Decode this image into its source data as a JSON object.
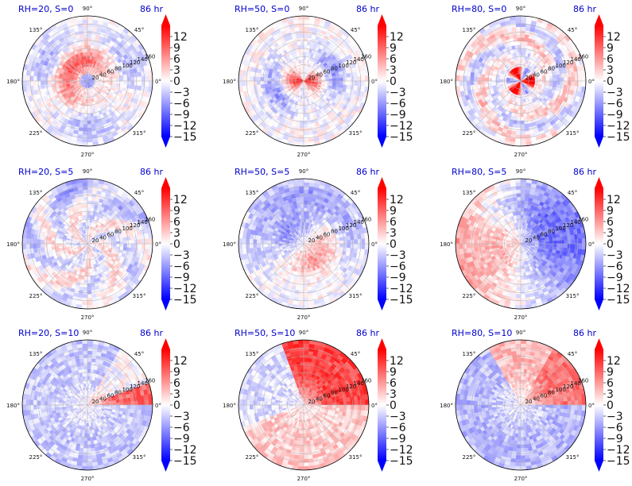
{
  "figure": {
    "colors": {
      "positive": "#ff0000",
      "negative": "#0000ff",
      "neutral": "#ffffff",
      "title": "#0000cc"
    }
  },
  "chart_data": [
    {
      "type": "heatmap",
      "projection": "polar",
      "title": "RH=20, S=0",
      "time_label": "86 hr",
      "pattern": "ring",
      "angle_tick_labels": [
        "90°",
        "45°",
        "0°",
        "315°",
        "270°",
        "225°",
        "180°",
        "135°"
      ],
      "radial_tick_labels": [
        "20",
        "40",
        "60",
        "80",
        "100",
        "120",
        "140",
        "160"
      ],
      "colorbar": {
        "ticks": [
          "12",
          "9",
          "6",
          "3",
          "0",
          "−3",
          "−6",
          "−9",
          "−12",
          "−15"
        ],
        "vmin": -15,
        "vmax": 15,
        "extend": "both",
        "colormap": "bwr"
      }
    },
    {
      "type": "heatmap",
      "projection": "polar",
      "title": "RH=50, S=0",
      "time_label": "86 hr",
      "pattern": "core",
      "angle_tick_labels": [
        "90°",
        "45°",
        "0°",
        "315°",
        "270°",
        "225°",
        "180°",
        "135°"
      ],
      "radial_tick_labels": [
        "20",
        "40",
        "60",
        "80",
        "100",
        "120",
        "140",
        "160"
      ],
      "colorbar": {
        "ticks": [
          "12",
          "9",
          "6",
          "3",
          "0",
          "−3",
          "−6",
          "−9",
          "−12",
          "−15"
        ],
        "vmin": -15,
        "vmax": 15,
        "extend": "both",
        "colormap": "bwr"
      }
    },
    {
      "type": "heatmap",
      "projection": "polar",
      "title": "RH=80, S=0",
      "time_label": "86 hr",
      "pattern": "spiral",
      "angle_tick_labels": [
        "90°",
        "45°",
        "0°",
        "315°",
        "270°",
        "225°",
        "180°",
        "135°"
      ],
      "radial_tick_labels": [
        "20",
        "40",
        "60",
        "80",
        "100",
        "120",
        "140",
        "160"
      ],
      "colorbar": {
        "ticks": [
          "12",
          "9",
          "6",
          "3",
          "0",
          "−3",
          "−6",
          "−9",
          "−12",
          "−15"
        ],
        "vmin": -15,
        "vmax": 15,
        "extend": "both",
        "colormap": "bwr"
      }
    },
    {
      "type": "heatmap",
      "projection": "polar",
      "title": "RH=20, S=5",
      "time_label": "86 hr",
      "pattern": "patchy",
      "angle_tick_labels": [
        "90°",
        "45°",
        "0°",
        "315°",
        "270°",
        "225°",
        "180°",
        "135°"
      ],
      "radial_tick_labels": [
        "20",
        "40",
        "60",
        "80",
        "100",
        "120",
        "140",
        "160"
      ],
      "colorbar": {
        "ticks": [
          "12",
          "9",
          "6",
          "3",
          "0",
          "−3",
          "−6",
          "−9",
          "−12",
          "−15"
        ],
        "vmin": -15,
        "vmax": 15,
        "extend": "both",
        "colormap": "bwr"
      }
    },
    {
      "type": "heatmap",
      "projection": "polar",
      "title": "RH=50, S=5",
      "time_label": "86 hr",
      "pattern": "mixed",
      "angle_tick_labels": [
        "90°",
        "45°",
        "0°",
        "315°",
        "270°",
        "225°",
        "180°",
        "135°"
      ],
      "radial_tick_labels": [
        "20",
        "40",
        "60",
        "80",
        "100",
        "120",
        "140",
        "160"
      ],
      "colorbar": {
        "ticks": [
          "12",
          "9",
          "6",
          "3",
          "0",
          "−3",
          "−6",
          "−9",
          "−12",
          "−15"
        ],
        "vmin": -15,
        "vmax": 15,
        "extend": "both",
        "colormap": "bwr"
      }
    },
    {
      "type": "heatmap",
      "projection": "polar",
      "title": "RH=80, S=5",
      "time_label": "86 hr",
      "pattern": "dipole",
      "angle_tick_labels": [
        "90°",
        "45°",
        "0°",
        "315°",
        "270°",
        "225°",
        "180°",
        "135°"
      ],
      "radial_tick_labels": [
        "20",
        "40",
        "60",
        "80",
        "100",
        "120",
        "140",
        "160"
      ],
      "colorbar": {
        "ticks": [
          "12",
          "9",
          "6",
          "3",
          "0",
          "−3",
          "−6",
          "−9",
          "−12",
          "−15"
        ],
        "vmin": -15,
        "vmax": 15,
        "extend": "both",
        "colormap": "bwr"
      }
    },
    {
      "type": "heatmap",
      "projection": "polar",
      "title": "RH=20, S=10",
      "time_label": "86 hr",
      "pattern": "sector",
      "angle_tick_labels": [
        "90°",
        "45°",
        "0°",
        "315°",
        "270°",
        "225°",
        "180°",
        "135°"
      ],
      "radial_tick_labels": [
        "20",
        "40",
        "60",
        "80",
        "100",
        "120",
        "140",
        "160"
      ],
      "colorbar": {
        "ticks": [
          "12",
          "9",
          "6",
          "3",
          "0",
          "−3",
          "−6",
          "−9",
          "−12",
          "−15"
        ],
        "vmin": -15,
        "vmax": 15,
        "extend": "both",
        "colormap": "bwr"
      }
    },
    {
      "type": "heatmap",
      "projection": "polar",
      "title": "RH=50, S=10",
      "time_label": "86 hr",
      "pattern": "half",
      "angle_tick_labels": [
        "90°",
        "45°",
        "0°",
        "315°",
        "270°",
        "225°",
        "180°",
        "135°"
      ],
      "radial_tick_labels": [
        "20",
        "40",
        "60",
        "80",
        "100",
        "120",
        "140",
        "160"
      ],
      "colorbar": {
        "ticks": [
          "12",
          "9",
          "6",
          "3",
          "0",
          "−3",
          "−6",
          "−9",
          "−12",
          "−15"
        ],
        "vmin": -15,
        "vmax": 15,
        "extend": "both",
        "colormap": "bwr"
      }
    },
    {
      "type": "heatmap",
      "projection": "polar",
      "title": "RH=80, S=10",
      "time_label": "86 hr",
      "pattern": "east",
      "angle_tick_labels": [
        "90°",
        "45°",
        "0°",
        "315°",
        "270°",
        "225°",
        "180°",
        "135°"
      ],
      "radial_tick_labels": [
        "20",
        "40",
        "60",
        "80",
        "100",
        "120",
        "140",
        "160"
      ],
      "colorbar": {
        "ticks": [
          "12",
          "9",
          "6",
          "3",
          "0",
          "−3",
          "−6",
          "−9",
          "−12",
          "−15"
        ],
        "vmin": -15,
        "vmax": 15,
        "extend": "both",
        "colormap": "bwr"
      }
    }
  ]
}
